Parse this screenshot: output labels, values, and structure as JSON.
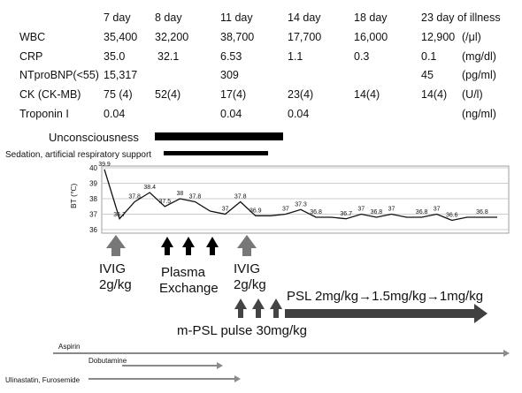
{
  "table": {
    "days": [
      "7 day",
      "8 day",
      "11 day",
      "14 day",
      "18 day",
      "23 day of illness"
    ],
    "rows": [
      {
        "name": "WBC",
        "values": [
          "35,400",
          "32,200",
          "38,700",
          "17,700",
          "16,000",
          "12,900"
        ],
        "unit": "(/μl)"
      },
      {
        "name": "CRP",
        "values": [
          "35.0",
          "32.1",
          "6.53",
          "1.1",
          "0.3",
          "0.1"
        ],
        "unit": "(mg/dl)"
      },
      {
        "name": "NTproBNP(<55)",
        "values": [
          "15,317",
          "",
          "309",
          "",
          "",
          "45"
        ],
        "unit": "(pg/ml)"
      },
      {
        "name": "CK  (CK-MB)",
        "values": [
          "75 (4)",
          "52(4)",
          "17(4)",
          "23(4)",
          "14(4)",
          "14(4)"
        ],
        "unit": "(U/l)"
      },
      {
        "name": "Troponin I",
        "values": [
          "0.04",
          "",
          "0.04",
          "0.04",
          "",
          ""
        ],
        "unit": "(ng/ml)"
      }
    ]
  },
  "status_bars": [
    {
      "label": "Unconsciousness"
    },
    {
      "label": "Sedation, artificial respiratory support"
    }
  ],
  "chart_data": {
    "type": "line",
    "ylabel": "BT (℃)",
    "ylim": [
      36,
      40
    ],
    "yticks": [
      36,
      37,
      38,
      39,
      40
    ],
    "grid": true,
    "series": [
      {
        "values": [
          39.9,
          36.7,
          37.8,
          38.4,
          37.5,
          38,
          37.8,
          37.2,
          37,
          37.8,
          36.9,
          36.9,
          37,
          37.3,
          36.8,
          36.8,
          36.7,
          37,
          36.8,
          37,
          36.8,
          36.8,
          37,
          36.6,
          36.8,
          36.8,
          36.8
        ],
        "labels": [
          "39.9",
          "36.7",
          "37.8",
          "38.4",
          "37.5",
          "38",
          "37.8",
          "",
          "37",
          "37.8",
          "36.9",
          "",
          "37",
          "37.3",
          "36.8",
          "",
          "36.7",
          "37",
          "36.8",
          "37",
          "",
          "36.8",
          "37",
          "36.6",
          "",
          "36.8",
          ""
        ]
      }
    ]
  },
  "treatments": {
    "ivig1": [
      "IVIG",
      "2g/kg"
    ],
    "plasma": [
      "Plasma",
      "Exchange"
    ],
    "ivig2": [
      "IVIG",
      "2g/kg"
    ],
    "mpsl": "m-PSL pulse 30mg/kg",
    "psl": "PSL 2mg/kg→1.5mg/kg→1mg/kg"
  },
  "drugs": [
    {
      "label": "Aspirin"
    },
    {
      "label": "Dobutamine"
    },
    {
      "label": "Ulinastatin, Furosemide"
    }
  ]
}
